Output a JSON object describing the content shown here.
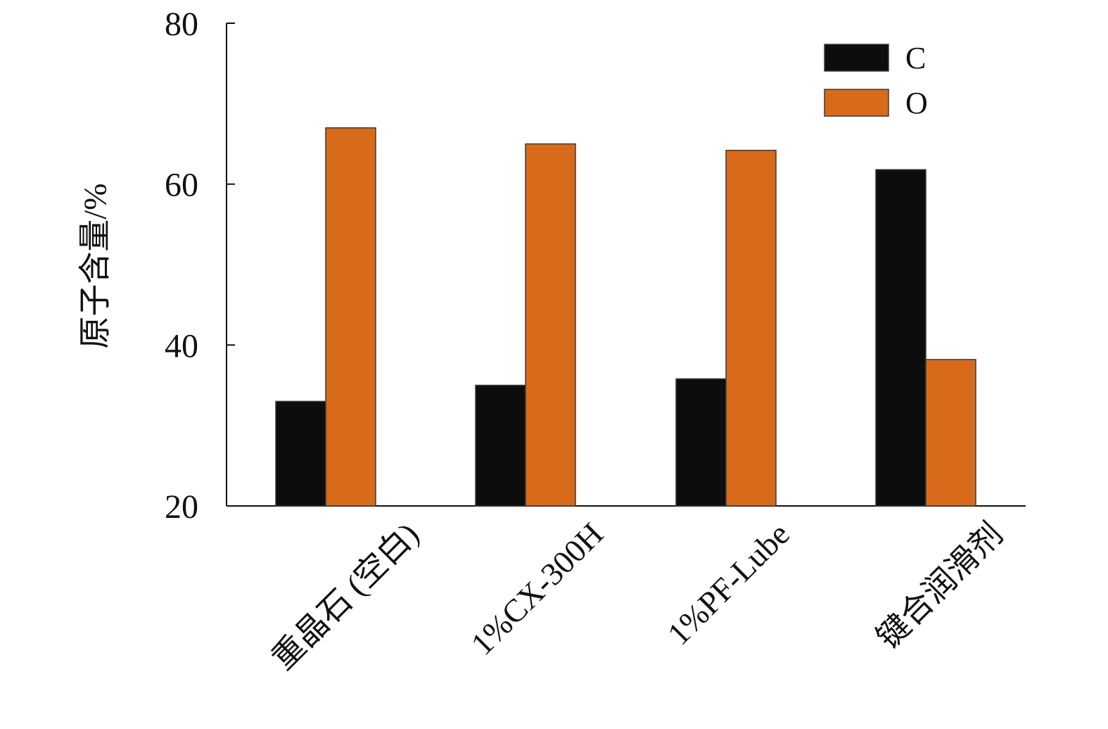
{
  "chart_data": {
    "type": "bar",
    "title": "",
    "xlabel": "",
    "ylabel": "原子含量/%",
    "ylim": [
      20,
      80
    ],
    "yticks": [
      20,
      40,
      60,
      80
    ],
    "grid": false,
    "legend_position": "top-right",
    "categories": [
      "重晶石 (空白)",
      "1%CX-300H",
      "1%PF-Lube",
      "键合润滑剂"
    ],
    "series": [
      {
        "name": "C",
        "color": "#0d0d0d",
        "values": [
          33,
          35,
          35.8,
          61.8
        ]
      },
      {
        "name": "O",
        "color": "#d86b1a",
        "values": [
          67,
          65,
          64.2,
          38.2
        ]
      }
    ]
  }
}
